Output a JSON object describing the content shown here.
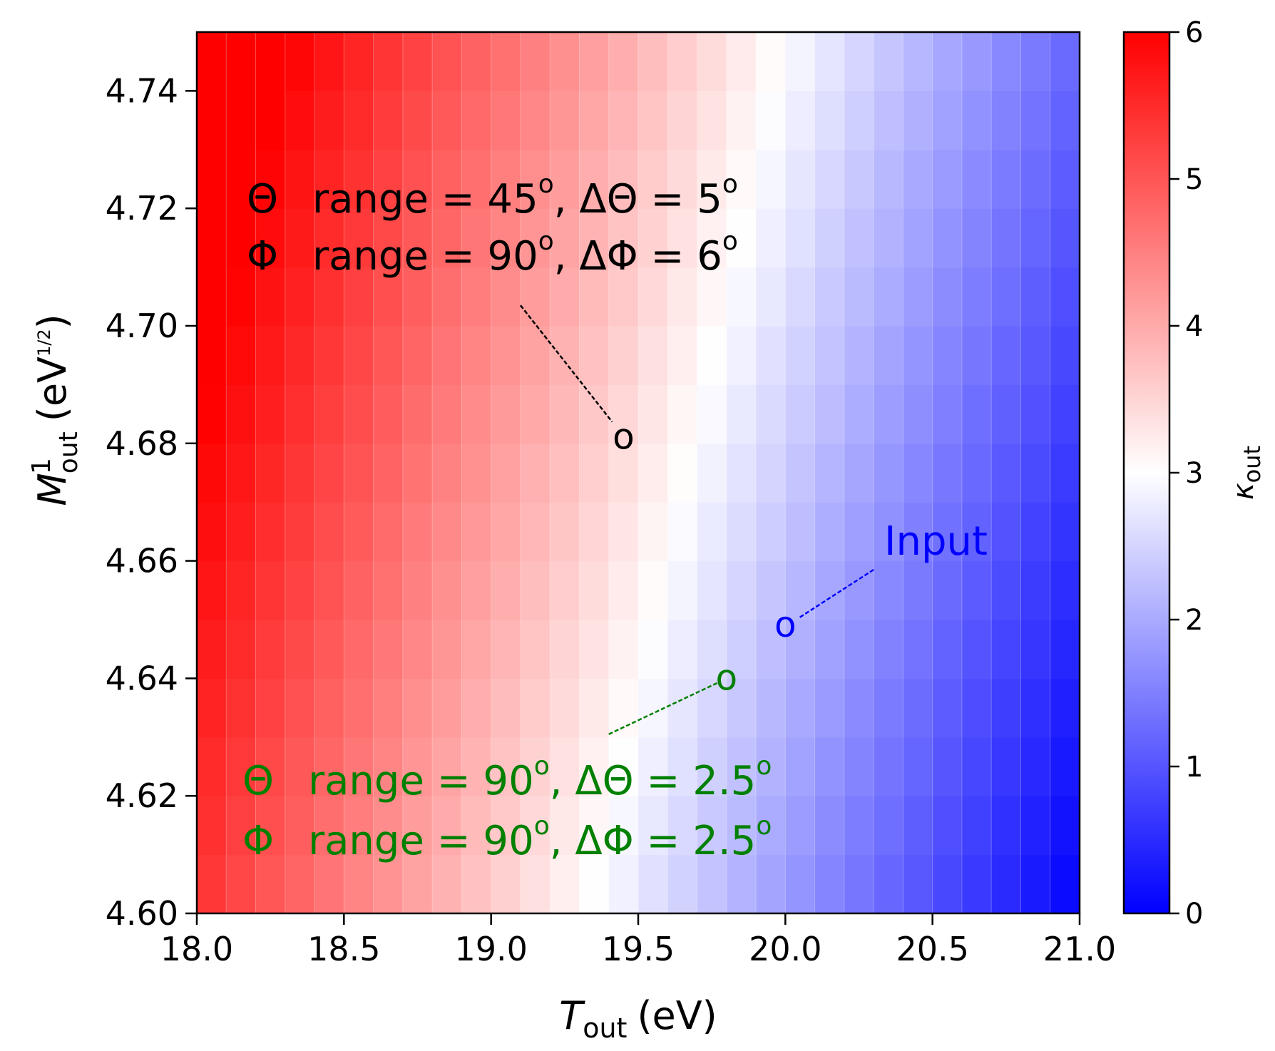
{
  "chart_data": {
    "type": "heatmap",
    "title": "",
    "xlabel": {
      "symbol": "T",
      "sub": "out",
      "unit": "(eV)"
    },
    "ylabel": {
      "symbol": "M",
      "sub": "out",
      "sup": "1",
      "unit_open": "(eV",
      "unit_sup": "1/2",
      "unit_close": ")"
    },
    "xlim": [
      18.0,
      21.0
    ],
    "ylim": [
      4.6,
      4.75
    ],
    "grid_x": [
      18.0,
      21.0,
      30
    ],
    "grid_y": [
      4.6,
      4.75,
      15
    ],
    "x_ticks": [
      18.0,
      18.5,
      19.0,
      19.5,
      20.0,
      20.5,
      21.0
    ],
    "x_tick_labels": [
      "18.0",
      "18.5",
      "19.0",
      "19.5",
      "20.0",
      "20.5",
      "21.0"
    ],
    "y_ticks": [
      4.6,
      4.62,
      4.64,
      4.66,
      4.68,
      4.7,
      4.72,
      4.74
    ],
    "y_tick_labels": [
      "4.60",
      "4.62",
      "4.64",
      "4.66",
      "4.68",
      "4.70",
      "4.72",
      "4.74"
    ],
    "colorbar": {
      "label_symbol": "κ",
      "label_sub": "out",
      "range": [
        0,
        6
      ],
      "ticks": [
        0,
        1,
        2,
        3,
        4,
        5,
        6
      ],
      "tick_labels": [
        "0",
        "1",
        "2",
        "3",
        "4",
        "5",
        "6"
      ],
      "colormap": "bwr",
      "low_color": "#0000ff",
      "mid_color": "#ffffff",
      "high_color": "#ff0000"
    },
    "points": [
      {
        "name": "black-point",
        "x": 19.45,
        "y": 4.681,
        "color": "#000000"
      },
      {
        "name": "input-point",
        "x": 20.0,
        "y": 4.649,
        "color": "#0000ff"
      },
      {
        "name": "green-point",
        "x": 19.8,
        "y": 4.64,
        "color": "#008000"
      }
    ],
    "annotations": {
      "black": {
        "color": "#000000",
        "line1": {
          "sym": "Θ",
          "a": "range = 45",
          "b": ", ΔΘ = 5"
        },
        "line2": {
          "sym": "Φ",
          "a": "range = 90",
          "b": ",  ΔΦ = 6"
        },
        "leader_from": [
          19.1,
          4.7035
        ]
      },
      "input": {
        "color": "#0000ff",
        "text": "Input",
        "leader_from": [
          20.3,
          4.6585
        ]
      },
      "green": {
        "color": "#008000",
        "line1": {
          "sym": "Θ",
          "a": "range = 90",
          "b": ", ΔΘ = 2.5"
        },
        "line2": {
          "sym": "Φ",
          "a": "range = 90",
          "b": ",  ΔΦ = 2.5"
        },
        "leader_from": [
          19.4,
          4.6305
        ]
      },
      "degree": "o",
      "marker": "o"
    }
  }
}
